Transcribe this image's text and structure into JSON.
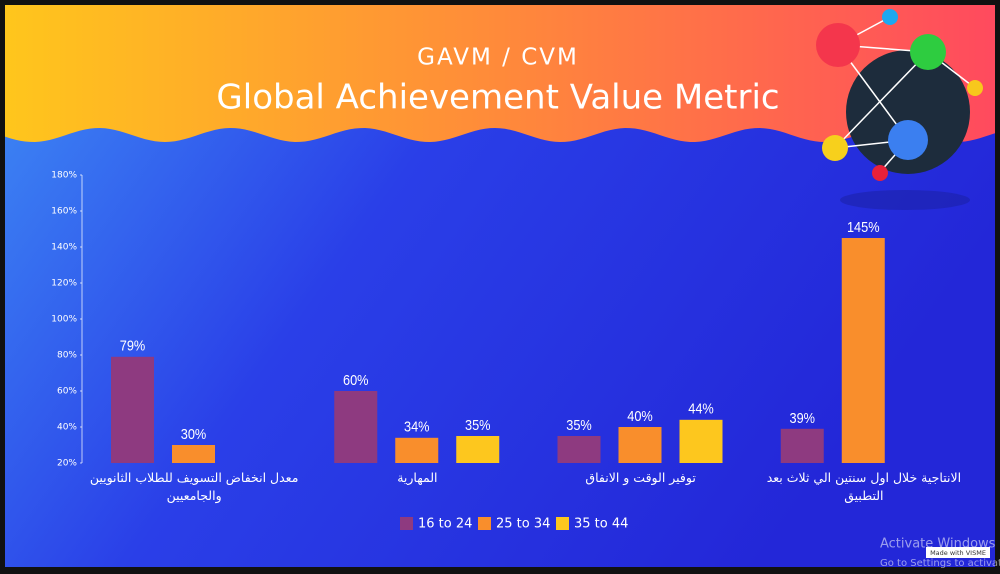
{
  "chart_data": {
    "type": "bar",
    "subtitle": "GAVM / CVM",
    "title": "Global Achievement Value Metric",
    "categories": [
      "معدل انخفاض التسويف للطلاب الثانويين والجامعيين",
      "المهارية",
      "توفير الوقت و الانفاق",
      "الانتاجية خلال اول سنتين الي ثلاث بعد التطبيق"
    ],
    "series": [
      {
        "name": "16 to 24",
        "color": "#8e3a80",
        "values": [
          79,
          60,
          35,
          39
        ],
        "value_labels": [
          "79%",
          "60%",
          "35%",
          "39%"
        ]
      },
      {
        "name": "25 to 34",
        "color": "#f98e2c",
        "values": [
          30,
          34,
          40,
          145
        ],
        "value_labels": [
          "30%",
          "34%",
          "40%",
          "145%"
        ]
      },
      {
        "name": "35 to 44",
        "color": "#fdc71e",
        "values": [
          null,
          35,
          44,
          null
        ],
        "value_labels": [
          null,
          "35%",
          "44%",
          null
        ]
      }
    ],
    "ylim": [
      20,
      180
    ],
    "yticks": [
      {
        "value": 20,
        "label": "20%"
      },
      {
        "value": 40,
        "label": "40%"
      },
      {
        "value": 60,
        "label": "60%"
      },
      {
        "value": 80,
        "label": "80%"
      },
      {
        "value": 100,
        "label": "100%"
      },
      {
        "value": 120,
        "label": "120%"
      },
      {
        "value": 140,
        "label": "140%"
      },
      {
        "value": 160,
        "label": "160%"
      },
      {
        "value": 180,
        "label": "180%"
      }
    ],
    "legend": "bottom",
    "footer": "Made with VISME",
    "overlay": [
      "Activate Windows",
      "Go to Settings to activate Windows."
    ]
  }
}
